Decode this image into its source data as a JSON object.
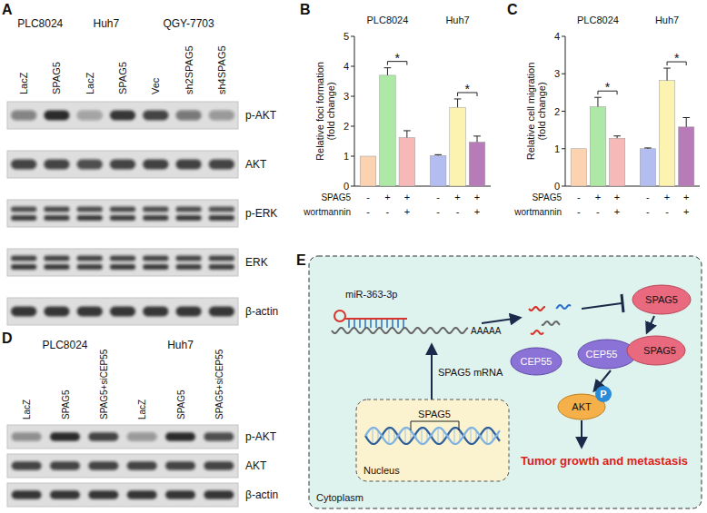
{
  "panel_labels": [
    "A",
    "B",
    "C",
    "D",
    "E"
  ],
  "blots": [
    {
      "groups": [
        {
          "label": "PLC8024",
          "from": 0,
          "to": 1
        },
        {
          "label": "Huh7",
          "from": 2,
          "to": 3
        },
        {
          "label": "QGY-7703",
          "from": 4,
          "to": 6
        }
      ],
      "lanes": [
        "LacZ",
        "SPAG5",
        "LacZ",
        "SPAG5",
        "Vec",
        "sh2SPAG5",
        "sh4SPAG5"
      ],
      "rows": [
        {
          "label": "p-AKT",
          "intensity": [
            0.45,
            0.9,
            0.3,
            0.85,
            0.75,
            0.5,
            0.35
          ]
        },
        {
          "label": "AKT",
          "intensity": [
            0.75,
            0.75,
            0.7,
            0.75,
            0.8,
            0.8,
            0.75
          ]
        },
        {
          "label": "p-ERK",
          "intensity": [
            [
              0.7,
              0.8
            ],
            [
              0.72,
              0.8
            ],
            [
              0.7,
              0.78
            ],
            [
              0.72,
              0.8
            ],
            [
              0.7,
              0.8
            ],
            [
              0.7,
              0.78
            ],
            [
              0.68,
              0.78
            ]
          ]
        },
        {
          "label": "ERK",
          "intensity": [
            [
              0.75,
              0.82
            ],
            [
              0.75,
              0.82
            ],
            [
              0.75,
              0.8
            ],
            [
              0.75,
              0.82
            ],
            [
              0.75,
              0.82
            ],
            [
              0.75,
              0.8
            ],
            [
              0.75,
              0.8
            ]
          ]
        },
        {
          "label": "β-actin",
          "intensity": [
            0.85,
            0.85,
            0.85,
            0.85,
            0.85,
            0.85,
            0.85
          ]
        }
      ]
    },
    {
      "groups": [
        {
          "label": "PLC8024",
          "from": 0,
          "to": 2
        },
        {
          "label": "Huh7",
          "from": 3,
          "to": 5
        }
      ],
      "lanes": [
        "LacZ",
        "SPAG5",
        "SPAG5+siCEP55",
        "LacZ",
        "SPAG5",
        "SPAG5+siCEP55"
      ],
      "rows": [
        {
          "label": "p-AKT",
          "intensity": [
            0.4,
            0.9,
            0.75,
            0.35,
            0.9,
            0.7
          ]
        },
        {
          "label": "AKT",
          "intensity": [
            0.75,
            0.75,
            0.75,
            0.75,
            0.75,
            0.75
          ]
        },
        {
          "label": "β-actin",
          "intensity": [
            0.85,
            0.85,
            0.85,
            0.85,
            0.85,
            0.85
          ]
        }
      ]
    }
  ],
  "chart_data": [
    {
      "type": "bar",
      "groups": [
        {
          "label": "PLC8024",
          "from": 0,
          "to": 2
        },
        {
          "label": "Huh7",
          "from": 3,
          "to": 5
        }
      ],
      "y_label": [
        "Relative foci formation",
        "(fold change)"
      ],
      "categories": [
        null,
        null,
        null,
        null,
        null,
        null
      ],
      "values": [
        1,
        3.7,
        1.62,
        1.02,
        2.63,
        1.47
      ],
      "errors": [
        0,
        0.25,
        0.23,
        0.03,
        0.28,
        0.2
      ],
      "colors": [
        "#fcd3b0",
        "#aee8a6",
        "#f7b9b8",
        "#b3bdf0",
        "#fdf3b0",
        "#b77bb8"
      ],
      "ylim": [
        0,
        5
      ],
      "yticks": [
        0,
        1,
        2,
        3,
        4,
        5
      ],
      "conditions": [
        {
          "label": "SPAG5",
          "values": [
            "-",
            "+",
            "+",
            "-",
            "+",
            "+"
          ]
        },
        {
          "label": "wortmannin",
          "values": [
            "-",
            "-",
            "+",
            "-",
            "-",
            "+"
          ]
        }
      ],
      "annotations": [
        {
          "text": "*",
          "from": 1,
          "to": 2
        },
        {
          "text": "*",
          "from": 4,
          "to": 5
        }
      ]
    },
    {
      "type": "bar",
      "groups": [
        {
          "label": "PLC8024",
          "from": 0,
          "to": 2
        },
        {
          "label": "Huh7",
          "from": 3,
          "to": 5
        }
      ],
      "y_label": [
        "Relative cell migration",
        "(fold change)"
      ],
      "categories": [
        null,
        null,
        null,
        null,
        null,
        null
      ],
      "values": [
        1,
        2.12,
        1.28,
        1,
        2.82,
        1.58
      ],
      "errors": [
        0,
        0.25,
        0.06,
        0.02,
        0.33,
        0.25
      ],
      "colors": [
        "#fcd3b0",
        "#aee8a6",
        "#f7b9b8",
        "#b3bdf0",
        "#fdf3b0",
        "#b77bb8"
      ],
      "ylim": [
        0,
        4
      ],
      "yticks": [
        0,
        1,
        2,
        3,
        4
      ],
      "conditions": [
        {
          "label": "SPAG5",
          "values": [
            "-",
            "+",
            "+",
            "-",
            "+",
            "+"
          ]
        },
        {
          "label": "wortmannin",
          "values": [
            "-",
            "-",
            "+",
            "-",
            "-",
            "+"
          ]
        }
      ],
      "annotations": [
        {
          "text": "*",
          "from": 1,
          "to": 2
        },
        {
          "text": "*",
          "from": 4,
          "to": 5
        }
      ]
    }
  ],
  "diagram": {
    "cytoplasm": "Cytoplasm",
    "nucleus": "Nucleus",
    "gene": "SPAG5",
    "mrna": "SPAG5 mRNA",
    "mirna": "miR-363-3p",
    "poly_a": "AAAAA",
    "protein": "SPAG5",
    "partner": "CEP55",
    "complex": [
      "CEP55",
      "SPAG5"
    ],
    "kinase": "AKT",
    "phospho": "P",
    "outcome": "Tumor growth and metastasis"
  }
}
